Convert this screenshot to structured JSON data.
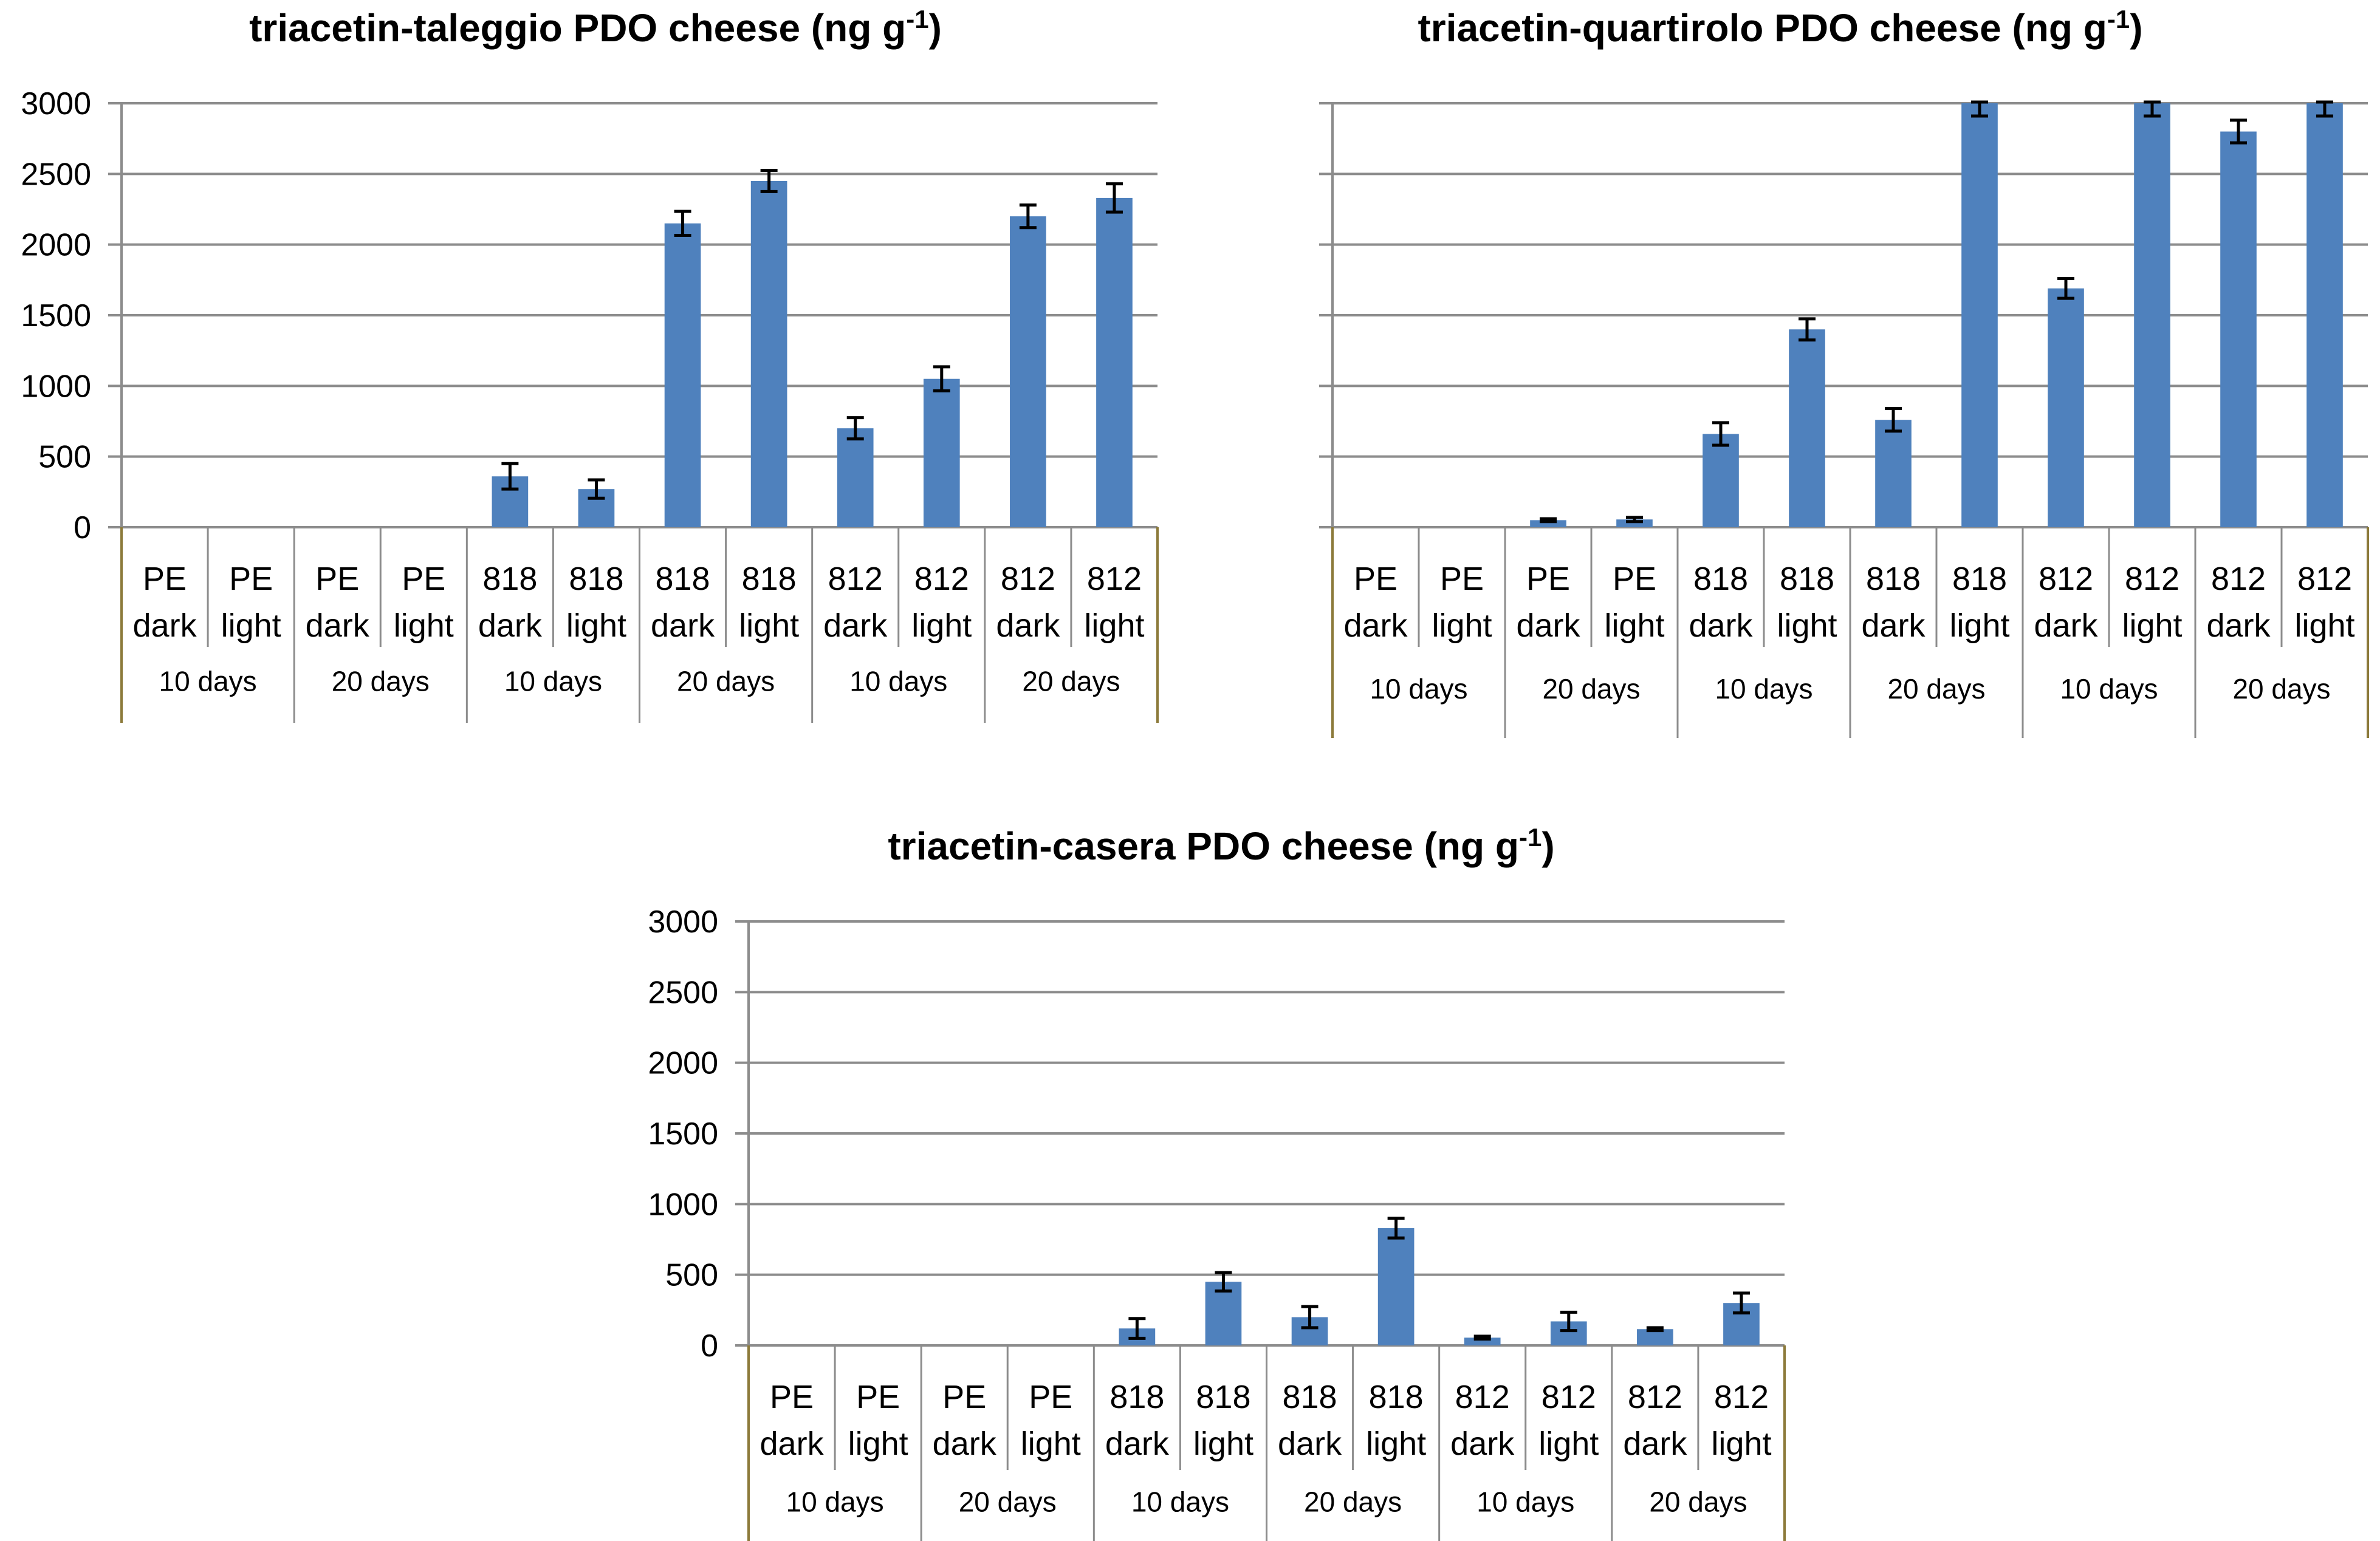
{
  "colors": {
    "bar": "#4f81bd",
    "grid": "#8c8c8c",
    "axis_frame": "#8c7a3a"
  },
  "chart_data": [
    {
      "type": "bar",
      "title": "triacetin-taleggio PDO  cheese (ng g",
      "title_sup": "-1",
      "title_end": ")",
      "ylim": [
        0,
        3000
      ],
      "yticks": [
        "0",
        "500",
        "1000",
        "1500",
        "2000",
        "2500",
        "3000"
      ],
      "grid": true,
      "categories": [
        [
          "PE",
          "dark"
        ],
        [
          "PE",
          "light"
        ],
        [
          "PE",
          "dark"
        ],
        [
          "PE",
          "light"
        ],
        [
          "818",
          "dark"
        ],
        [
          "818",
          "light"
        ],
        [
          "818",
          "dark"
        ],
        [
          "818",
          "light"
        ],
        [
          "812",
          "dark"
        ],
        [
          "812",
          "light"
        ],
        [
          "812",
          "dark"
        ],
        [
          "812",
          "light"
        ]
      ],
      "groups": [
        "10 days",
        "20 days",
        "10 days",
        "20 days",
        "10 days",
        "20 days"
      ],
      "values": [
        0,
        0,
        0,
        0,
        360,
        270,
        2150,
        2450,
        700,
        1050,
        2200,
        2330
      ],
      "errors": [
        0,
        0,
        0,
        0,
        90,
        65,
        85,
        75,
        75,
        85,
        80,
        100
      ]
    },
    {
      "type": "bar",
      "title": "triacetin-quartirolo PDO  cheese (ng g",
      "title_sup": "-1",
      "title_end": ")",
      "ylim": [
        0,
        3000
      ],
      "yticks": [
        "0",
        "500",
        "1000",
        "1500",
        "2000",
        "2500",
        "3000"
      ],
      "grid": true,
      "categories": [
        [
          "PE",
          "dark"
        ],
        [
          "PE",
          "light"
        ],
        [
          "PE",
          "dark"
        ],
        [
          "PE",
          "light"
        ],
        [
          "818",
          "dark"
        ],
        [
          "818",
          "light"
        ],
        [
          "818",
          "dark"
        ],
        [
          "818",
          "light"
        ],
        [
          "812",
          "dark"
        ],
        [
          "812",
          "light"
        ],
        [
          "812",
          "dark"
        ],
        [
          "812",
          "light"
        ]
      ],
      "groups": [
        "10 days",
        "20 days",
        "10 days",
        "20 days",
        "10 days",
        "20 days"
      ],
      "values": [
        0,
        0,
        50,
        55,
        660,
        1400,
        760,
        3000,
        1690,
        3000,
        2800,
        3000
      ],
      "errors": [
        0,
        0,
        10,
        15,
        80,
        75,
        80,
        90,
        70,
        90,
        80,
        90
      ]
    },
    {
      "type": "bar",
      "title": "triacetin-casera PDO  cheese (ng g",
      "title_sup": "-1",
      "title_end": ")",
      "ylim": [
        0,
        3000
      ],
      "yticks": [
        "0",
        "500",
        "1000",
        "1500",
        "2000",
        "2500",
        "3000"
      ],
      "grid": true,
      "categories": [
        [
          "PE",
          "dark"
        ],
        [
          "PE",
          "light"
        ],
        [
          "PE",
          "dark"
        ],
        [
          "PE",
          "light"
        ],
        [
          "818",
          "dark"
        ],
        [
          "818",
          "light"
        ],
        [
          "818",
          "dark"
        ],
        [
          "818",
          "light"
        ],
        [
          "812",
          "dark"
        ],
        [
          "812",
          "light"
        ],
        [
          "812",
          "dark"
        ],
        [
          "812",
          "light"
        ]
      ],
      "groups": [
        "10 days",
        "20 days",
        "10 days",
        "20 days",
        "10 days",
        "20 days"
      ],
      "values": [
        0,
        0,
        0,
        0,
        120,
        450,
        200,
        830,
        55,
        170,
        115,
        300
      ],
      "errors": [
        0,
        0,
        0,
        0,
        70,
        65,
        75,
        70,
        10,
        65,
        10,
        70
      ]
    }
  ]
}
